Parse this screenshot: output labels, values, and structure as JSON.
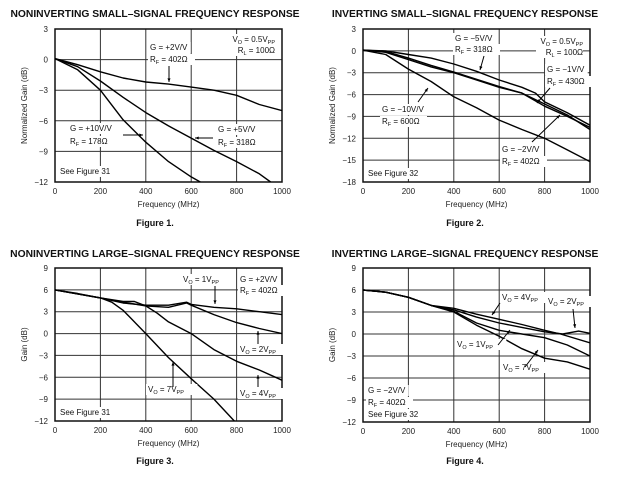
{
  "chart_data": [
    {
      "type": "line",
      "title": "NONINVERTING SMALL–SIGNAL FREQUENCY RESPONSE",
      "figure_label": "Figure 1.",
      "xlabel": "Frequency (MHz)",
      "ylabel": "Normalized Gain (dB)",
      "xlim": [
        0,
        1000
      ],
      "ylim": [
        -12,
        3
      ],
      "xticks": [
        "0",
        "200",
        "400",
        "600",
        "800",
        "1000"
      ],
      "yticks": [
        "3",
        "0",
        "−3",
        "−6",
        "−9",
        "−12"
      ],
      "xtick_values": [
        0,
        200,
        400,
        600,
        800,
        1000
      ],
      "ytick_values": [
        3,
        0,
        -3,
        -6,
        -9,
        -12
      ],
      "grid": true,
      "annotations": [
        "V_O = 0.5V_PP",
        "R_L = 100Ω",
        "G = +2V/V",
        "R_F = 402Ω",
        "G = +10V/V",
        "R_F = 178Ω",
        "G = +5V/V",
        "R_F = 318Ω",
        "See Figure 31"
      ],
      "series": [
        {
          "name": "G = +2V/V, RF = 402Ω",
          "x": [
            0,
            100,
            200,
            300,
            400,
            500,
            600,
            700,
            800,
            900,
            1000
          ],
          "y": [
            0.1,
            -0.5,
            -1.2,
            -1.8,
            -2.2,
            -2.4,
            -2.7,
            -3,
            -3.5,
            -4.4,
            -5
          ]
        },
        {
          "name": "G = +5V/V, RF = 318Ω",
          "x": [
            0,
            100,
            200,
            300,
            400,
            500,
            600,
            700,
            800,
            900,
            950
          ],
          "y": [
            0.1,
            -0.7,
            -2.1,
            -3.7,
            -5.2,
            -6.5,
            -7.7,
            -8.9,
            -10,
            -11.2,
            -12
          ]
        },
        {
          "name": "G = +10V/V, RF = 178Ω",
          "x": [
            0,
            100,
            200,
            300,
            400,
            500,
            600,
            640
          ],
          "y": [
            0.1,
            -1,
            -3,
            -5.9,
            -8.1,
            -10,
            -11.5,
            -12
          ]
        }
      ]
    },
    {
      "type": "line",
      "title": "INVERTING SMALL–SIGNAL FREQUENCY RESPONSE",
      "figure_label": "Figure 2.",
      "xlabel": "Frequency (MHz)",
      "ylabel": "Normalized Gain (dB)",
      "xlim": [
        0,
        1000
      ],
      "ylim": [
        -18,
        3
      ],
      "xticks": [
        "0",
        "200",
        "400",
        "600",
        "800",
        "1000"
      ],
      "yticks": [
        "3",
        "0",
        "−3",
        "−6",
        "−9",
        "−12",
        "−15",
        "−18"
      ],
      "xtick_values": [
        0,
        200,
        400,
        600,
        800,
        1000
      ],
      "ytick_values": [
        3,
        0,
        -3,
        -6,
        -9,
        -12,
        -15,
        -18
      ],
      "grid": true,
      "annotations": [
        "G = −5V/V",
        "R_F = 318Ω",
        "V_O = 0.5V_PP",
        "R_L = 100Ω",
        "G = −1V/V",
        "R_F = 430Ω",
        "G = −10V/V",
        "R_F = 600Ω",
        "G = −2V/V",
        "R_F = 402Ω",
        "See Figure 32"
      ],
      "series": [
        {
          "name": "G = -5V/V, RF = 318Ω",
          "x": [
            0,
            100,
            200,
            300,
            400,
            500,
            600,
            700,
            760,
            800,
            900,
            1000
          ],
          "y": [
            0.1,
            0,
            -0.5,
            -1,
            -1.8,
            -2.8,
            -4,
            -5,
            -5.8,
            -7,
            -8.5,
            -10.2
          ]
        },
        {
          "name": "G = -1V/V, RF = 430Ω",
          "x": [
            0,
            100,
            200,
            300,
            400,
            500,
            600,
            700,
            800,
            900,
            1000
          ],
          "y": [
            0.1,
            -0.2,
            -1.2,
            -2.2,
            -3,
            -4,
            -5,
            -5.8,
            -7.3,
            -8.8,
            -10.8
          ]
        },
        {
          "name": "G = -2V/V, RF = 402Ω",
          "x": [
            0,
            100,
            200,
            300,
            400,
            500,
            600,
            700,
            800,
            900,
            1000
          ],
          "y": [
            0.1,
            -0.1,
            -1,
            -2,
            -2.9,
            -3.9,
            -4.9,
            -5.8,
            -7.6,
            -9,
            -10.5
          ]
        },
        {
          "name": "G = -10V/V, RF = 600Ω",
          "x": [
            0,
            100,
            200,
            300,
            400,
            500,
            600,
            700,
            800,
            900,
            1000
          ],
          "y": [
            0.1,
            -0.5,
            -2.5,
            -4.2,
            -6.3,
            -7.8,
            -9.5,
            -10.8,
            -12,
            -13.6,
            -15.2
          ]
        }
      ]
    },
    {
      "type": "line",
      "title": "NONINVERTING LARGE–SIGNAL FREQUENCY RESPONSE",
      "figure_label": "Figure 3.",
      "xlabel": "Frequency (MHz)",
      "ylabel": "Gain (dB)",
      "xlim": [
        0,
        1000
      ],
      "ylim": [
        -12,
        9
      ],
      "xticks": [
        "0",
        "200",
        "400",
        "600",
        "800",
        "1000"
      ],
      "yticks": [
        "9",
        "6",
        "3",
        "0",
        "−3",
        "−6",
        "−9",
        "−12"
      ],
      "xtick_values": [
        0,
        200,
        400,
        600,
        800,
        1000
      ],
      "ytick_values": [
        9,
        6,
        3,
        0,
        -3,
        -6,
        -9,
        -12
      ],
      "grid": true,
      "annotations": [
        "V_O = 1V_PP",
        "G = +2V/V",
        "R_F = 402Ω",
        "V_O = 2V_PP",
        "V_O = 7V_PP",
        "V_O = 4V_PP",
        "See Figure 31"
      ],
      "series": [
        {
          "name": "VO = 1VPP",
          "x": [
            0,
            100,
            200,
            300,
            400,
            500,
            580,
            600,
            700,
            800,
            900,
            1000
          ],
          "y": [
            6,
            5.5,
            4.9,
            4.2,
            3.9,
            3.9,
            4.3,
            4,
            3.6,
            3.4,
            3,
            2.6
          ]
        },
        {
          "name": "VO = 2VPP",
          "x": [
            0,
            200,
            300,
            350,
            400,
            500,
            580,
            600,
            700,
            800,
            900,
            1000
          ],
          "y": [
            6,
            4.9,
            4.4,
            4.4,
            3.8,
            3.6,
            4.2,
            3.9,
            2.6,
            1.5,
            0.7,
            0
          ]
        },
        {
          "name": "VO = 4VPP",
          "x": [
            0,
            200,
            300,
            400,
            450,
            500,
            600,
            700,
            800,
            900,
            1000
          ],
          "y": [
            6,
            4.9,
            4.3,
            3.8,
            2.8,
            1.6,
            0,
            -2.2,
            -3.8,
            -5,
            -6.4
          ]
        },
        {
          "name": "VO = 7VPP",
          "x": [
            0,
            200,
            250,
            300,
            400,
            500,
            600,
            700,
            790
          ],
          "y": [
            6,
            4.9,
            4.3,
            3.2,
            0,
            -3.3,
            -6.2,
            -9,
            -12
          ]
        }
      ]
    },
    {
      "type": "line",
      "title": "INVERTING LARGE–SIGNAL FREQUENCY RESPONSE",
      "figure_label": "Figure 4.",
      "xlabel": "Frequency (MHz)",
      "ylabel": "Gain (dB)",
      "xlim": [
        0,
        1000
      ],
      "ylim": [
        -12,
        9
      ],
      "xticks": [
        "0",
        "200",
        "400",
        "600",
        "800",
        "1000"
      ],
      "yticks": [
        "9",
        "6",
        "3",
        "0",
        "−3",
        "−6",
        "−9",
        "−12"
      ],
      "xtick_values": [
        0,
        200,
        400,
        600,
        800,
        1000
      ],
      "ytick_values": [
        9,
        6,
        3,
        0,
        -3,
        -6,
        -9,
        -12
      ],
      "grid": true,
      "annotations": [
        "V_O = 4V_PP",
        "V_O = 2V_PP",
        "V_O = 1V_PP",
        "V_O = 7V_PP",
        "G = −2V/V",
        "R_F = 402Ω",
        "See Figure 32"
      ],
      "series": [
        {
          "name": "VO = 4VPP",
          "x": [
            0,
            100,
            200,
            300,
            400,
            500,
            600,
            700,
            800,
            870,
            1000
          ],
          "y": [
            6,
            5.7,
            5,
            3.9,
            3.5,
            2.7,
            2,
            1.3,
            0.5,
            0,
            -1.2
          ]
        },
        {
          "name": "VO = 2VPP",
          "x": [
            0,
            100,
            200,
            300,
            400,
            500,
            600,
            700,
            800,
            880,
            950,
            1000
          ],
          "y": [
            6,
            5.7,
            5,
            3.9,
            3.3,
            2.3,
            1.5,
            0.9,
            0.3,
            0,
            0.4,
            0.1
          ]
        },
        {
          "name": "VO = 1VPP",
          "x": [
            0,
            100,
            200,
            300,
            400,
            500,
            600,
            700,
            800,
            900,
            1000
          ],
          "y": [
            6,
            5.7,
            5,
            3.9,
            3.1,
            1.5,
            0.5,
            0,
            -0.5,
            -1.5,
            -3
          ]
        },
        {
          "name": "VO = 7VPP",
          "x": [
            0,
            100,
            200,
            300,
            400,
            500,
            600,
            700,
            800,
            900,
            1000
          ],
          "y": [
            6,
            5.7,
            5,
            3.9,
            3,
            1.2,
            -0.3,
            -2,
            -3.3,
            -3.8,
            -4.8
          ]
        }
      ]
    }
  ]
}
